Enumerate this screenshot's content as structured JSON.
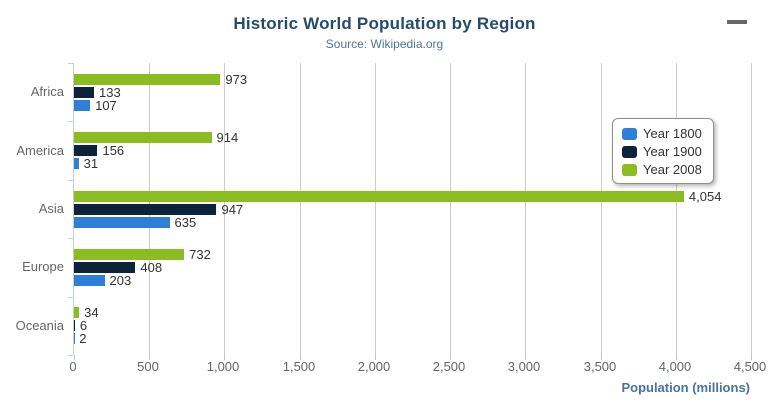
{
  "chart_data": {
    "type": "bar",
    "orientation": "horizontal",
    "title": "Historic World Population by Region",
    "subtitle": "Source: Wikipedia.org",
    "categories": [
      "Africa",
      "America",
      "Asia",
      "Europe",
      "Oceania"
    ],
    "series": [
      {
        "name": "Year 1800",
        "color": "#2f7ed8",
        "values": [
          107,
          31,
          635,
          203,
          2
        ]
      },
      {
        "name": "Year 1900",
        "color": "#0d233a",
        "values": [
          133,
          156,
          947,
          408,
          6
        ]
      },
      {
        "name": "Year 2008",
        "color": "#8bbc21",
        "values": [
          973,
          914,
          4054,
          732,
          34
        ]
      }
    ],
    "series_display_order_top_to_bottom": [
      "Year 2008",
      "Year 1900",
      "Year 1800"
    ],
    "xlabel": "Population (millions)",
    "xlim": [
      0,
      4500
    ],
    "xticks": [
      0,
      500,
      1000,
      1500,
      2000,
      2500,
      3000,
      3500,
      4000,
      4500
    ],
    "grid": true,
    "data_labels": true,
    "legend_position": "right-overlay"
  },
  "menu": {
    "icon_name": "hamburger-icon",
    "tooltip": "Chart context menu"
  },
  "colors": {
    "title": "#274b6d",
    "subtitle": "#4d759e",
    "axis_title": "#4572a7",
    "tick_label": "#666666",
    "category_label": "#666666",
    "data_label": "#333333",
    "gridline": "#cccccc",
    "axis_line": "#c0d0e0",
    "legend_border": "#909090",
    "menu_icon": "#666666",
    "background": "#ffffff"
  }
}
